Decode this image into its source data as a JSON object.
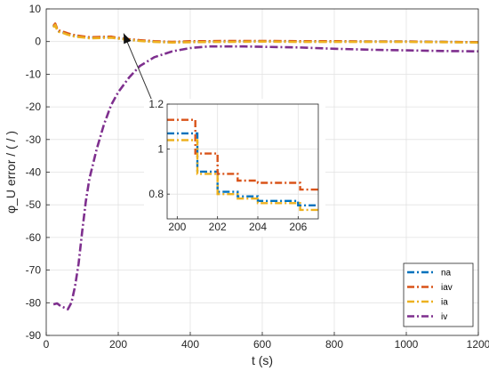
{
  "chart_data": {
    "type": "line",
    "xlabel": "t (s)",
    "ylabel": "φ_U error / ( / )",
    "xlim": [
      0,
      1200
    ],
    "ylim": [
      -90,
      10
    ],
    "xticks": [
      0,
      200,
      400,
      600,
      800,
      1000,
      1200
    ],
    "yticks": [
      10,
      0,
      -10,
      -20,
      -30,
      -40,
      -50,
      -60,
      -70,
      -80,
      -90
    ],
    "grid": true,
    "legend_position": "bottom-right",
    "series": [
      {
        "name": "na",
        "color": "#0072BD",
        "dash": "dashdot",
        "x": [
          20,
          25,
          30,
          35,
          45,
          60,
          80,
          100,
          120,
          150,
          180,
          200,
          230,
          260,
          300,
          350,
          400,
          450,
          500,
          600,
          700,
          800,
          900,
          1000,
          1100,
          1200
        ],
        "y": [
          4.5,
          5.3,
          3.8,
          3.2,
          2.9,
          2.3,
          1.7,
          1.5,
          1.2,
          1.3,
          1.4,
          1.0,
          0.6,
          0.3,
          0.0,
          -0.2,
          -0.1,
          -0.05,
          0.0,
          0.1,
          0.0,
          0.0,
          0.0,
          0.0,
          -0.1,
          -0.2
        ]
      },
      {
        "name": "iav",
        "color": "#D95319",
        "dash": "dashdot",
        "x": [
          20,
          25,
          30,
          35,
          45,
          60,
          80,
          100,
          120,
          150,
          180,
          200,
          230,
          260,
          300,
          350,
          400,
          450,
          500,
          600,
          700,
          800,
          900,
          1000,
          1100,
          1200
        ],
        "y": [
          4.8,
          5.5,
          4.0,
          3.4,
          3.1,
          2.5,
          1.9,
          1.6,
          1.3,
          1.4,
          1.5,
          1.1,
          0.7,
          0.4,
          0.1,
          -0.1,
          0.1,
          0.1,
          0.2,
          0.2,
          0.1,
          0.1,
          0.0,
          0.0,
          -0.1,
          -0.2
        ]
      },
      {
        "name": "ia",
        "color": "#EDB120",
        "dash": "dashdot",
        "x": [
          20,
          25,
          30,
          35,
          45,
          60,
          80,
          100,
          120,
          150,
          180,
          200,
          230,
          260,
          300,
          350,
          400,
          450,
          500,
          600,
          700,
          800,
          900,
          1000,
          1100,
          1200
        ],
        "y": [
          4.3,
          5.1,
          3.6,
          3.0,
          2.7,
          2.1,
          1.5,
          1.3,
          1.0,
          1.1,
          1.2,
          0.9,
          0.5,
          0.2,
          -0.1,
          -0.3,
          -0.2,
          -0.1,
          -0.1,
          0.0,
          -0.1,
          -0.1,
          -0.1,
          -0.1,
          -0.2,
          -0.3
        ]
      },
      {
        "name": "iv",
        "color": "#7E2F8E",
        "dash": "dashdot",
        "x": [
          20,
          30,
          40,
          50,
          60,
          70,
          80,
          90,
          100,
          110,
          120,
          140,
          160,
          180,
          200,
          230,
          260,
          300,
          350,
          400,
          450,
          500,
          550,
          600,
          700,
          800,
          900,
          1000,
          1100,
          1200
        ],
        "y": [
          -80.5,
          -80.2,
          -81.0,
          -81.5,
          -82.0,
          -80.0,
          -75.0,
          -68.0,
          -58.0,
          -49.0,
          -42.0,
          -33.0,
          -25.5,
          -19.5,
          -15.5,
          -11.0,
          -7.5,
          -4.8,
          -3.0,
          -2.0,
          -1.5,
          -1.5,
          -1.5,
          -1.6,
          -1.8,
          -2.2,
          -2.5,
          -2.7,
          -2.9,
          -3.0
        ]
      }
    ],
    "inset": {
      "xlim": [
        199.5,
        207
      ],
      "ylim": [
        0.69,
        1.2
      ],
      "xticks": [
        200,
        202,
        204,
        206
      ],
      "yticks": [
        1.2,
        1.0,
        0.8
      ],
      "ytick_labels": [
        "1.2",
        "1",
        "0.8"
      ],
      "grid": true,
      "series": [
        {
          "name": "na",
          "color": "#0072BD",
          "x": [
            199.5,
            201.0,
            201.0,
            202.0,
            202.0,
            203.0,
            203.0,
            204.0,
            204.0,
            206.0,
            206.0,
            207.0
          ],
          "y": [
            1.07,
            1.07,
            0.9,
            0.9,
            0.81,
            0.81,
            0.79,
            0.79,
            0.77,
            0.77,
            0.75,
            0.75
          ]
        },
        {
          "name": "iav",
          "color": "#D95319",
          "x": [
            199.5,
            200.9,
            200.9,
            202.0,
            202.0,
            203.0,
            203.0,
            204.0,
            204.0,
            206.1,
            206.1,
            207.0
          ],
          "y": [
            1.13,
            1.13,
            0.98,
            0.98,
            0.89,
            0.89,
            0.86,
            0.86,
            0.85,
            0.85,
            0.82,
            0.82
          ]
        },
        {
          "name": "ia",
          "color": "#EDB120",
          "x": [
            199.5,
            201.0,
            201.0,
            202.0,
            202.0,
            203.0,
            203.0,
            204.0,
            204.0,
            206.1,
            206.1,
            207.0
          ],
          "y": [
            1.04,
            1.04,
            0.89,
            0.89,
            0.8,
            0.8,
            0.78,
            0.78,
            0.76,
            0.76,
            0.73,
            0.73
          ]
        }
      ]
    },
    "arrow": {
      "from": [
        370,
        -38
      ],
      "to": [
        215,
        2.5
      ]
    }
  }
}
